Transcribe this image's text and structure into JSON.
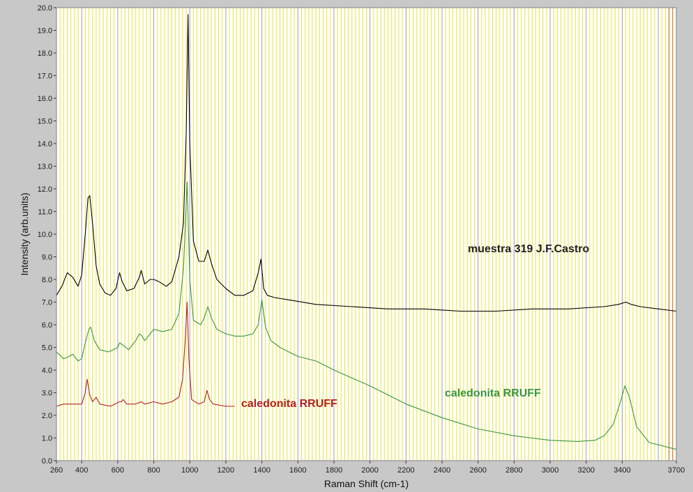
{
  "chart_data": {
    "type": "line",
    "title": "",
    "xlabel": "Raman Shift (cm-1)",
    "ylabel": "Intensity (arb.units)",
    "xlim": [
      260,
      3700
    ],
    "ylim": [
      0,
      20
    ],
    "x_ticks": [
      260,
      400,
      600,
      800,
      1000,
      1200,
      1400,
      1600,
      1800,
      2000,
      2200,
      2400,
      2600,
      2800,
      3000,
      3200,
      3400,
      3700
    ],
    "x_tick_labels": [
      "260",
      "400",
      "600",
      "800",
      "1000",
      "1200",
      "1400",
      "1600",
      "1800",
      "2000",
      "2200",
      "2400",
      "2600",
      "2800",
      "3000",
      "3200",
      "3400",
      "3700"
    ],
    "y_ticks": [
      0,
      1,
      2,
      3,
      4,
      5,
      6,
      7,
      8,
      9,
      10,
      11,
      12,
      13,
      14,
      15,
      16,
      17,
      18,
      19,
      20
    ],
    "y_tick_labels": [
      "0.0",
      "1.0",
      "2.0",
      "3.0",
      "4.0",
      "5.0",
      "6.0",
      "7.0",
      "8.0",
      "9.0",
      "10.0",
      "11.0",
      "12.0",
      "13.0",
      "14.0",
      "15.0",
      "16.0",
      "17.0",
      "18.0",
      "19.0",
      "20.0"
    ],
    "grid": true,
    "legend": "none",
    "colors": {
      "plot_background": "#ffffff",
      "frame_background": "#c8c8c8",
      "minor_grid": "#e6e63c",
      "major_grid": "#a0a0a0",
      "edge_marker": "#c86414"
    },
    "series": [
      {
        "label_text": "muestra 319 J.F.Castro",
        "color": "#000000",
        "x": [
          260,
          290,
          320,
          350,
          380,
          400,
          420,
          435,
          445,
          460,
          480,
          500,
          530,
          560,
          590,
          610,
          625,
          650,
          690,
          720,
          730,
          750,
          780,
          800,
          830,
          870,
          900,
          940,
          965,
          980,
          990,
          1000,
          1020,
          1050,
          1080,
          1100,
          1120,
          1150,
          1200,
          1250,
          1300,
          1350,
          1380,
          1395,
          1410,
          1430,
          1470,
          1550,
          1700,
          1900,
          2100,
          2300,
          2500,
          2700,
          2900,
          3100,
          3300,
          3380,
          3420,
          3450,
          3500,
          3600,
          3700
        ],
        "y": [
          7.3,
          7.7,
          8.3,
          8.1,
          7.7,
          8.2,
          10.0,
          11.6,
          11.7,
          10.5,
          8.6,
          7.8,
          7.4,
          7.3,
          7.6,
          8.3,
          7.9,
          7.5,
          7.6,
          8.1,
          8.4,
          7.8,
          8.0,
          8.0,
          7.9,
          7.7,
          7.9,
          9.0,
          10.5,
          14.5,
          19.7,
          14.0,
          9.7,
          8.8,
          8.8,
          9.3,
          8.7,
          8.0,
          7.6,
          7.3,
          7.3,
          7.5,
          8.3,
          8.9,
          7.6,
          7.3,
          7.2,
          7.1,
          6.9,
          6.8,
          6.7,
          6.7,
          6.6,
          6.6,
          6.7,
          6.7,
          6.8,
          6.9,
          7.0,
          6.9,
          6.8,
          6.7,
          6.6
        ]
      },
      {
        "label_text": "caledonita RRUFF",
        "color": "#3c963c",
        "x": [
          260,
          300,
          330,
          350,
          380,
          400,
          420,
          440,
          450,
          470,
          500,
          550,
          600,
          610,
          630,
          660,
          700,
          720,
          735,
          750,
          780,
          800,
          850,
          900,
          940,
          965,
          985,
          1000,
          1020,
          1060,
          1080,
          1100,
          1120,
          1150,
          1200,
          1250,
          1300,
          1350,
          1380,
          1400,
          1420,
          1450,
          1500,
          1600,
          1700,
          1800,
          2000,
          2200,
          2400,
          2600,
          2800,
          3000,
          3150,
          3250,
          3300,
          3350,
          3390,
          3415,
          3440,
          3480,
          3550,
          3700
        ],
        "y": [
          4.8,
          4.5,
          4.6,
          4.7,
          4.4,
          4.5,
          5.2,
          5.8,
          5.9,
          5.3,
          4.9,
          4.8,
          5.0,
          5.2,
          5.1,
          4.9,
          5.3,
          5.6,
          5.5,
          5.3,
          5.6,
          5.8,
          5.7,
          5.8,
          6.5,
          8.5,
          12.3,
          8.0,
          6.2,
          6.0,
          6.3,
          6.8,
          6.3,
          5.8,
          5.6,
          5.5,
          5.5,
          5.6,
          6.0,
          7.1,
          5.9,
          5.3,
          5.0,
          4.6,
          4.4,
          4.0,
          3.3,
          2.5,
          1.9,
          1.4,
          1.1,
          0.9,
          0.85,
          0.9,
          1.1,
          1.6,
          2.6,
          3.3,
          2.8,
          1.5,
          0.8,
          0.5
        ]
      },
      {
        "label_text": "caledonita RRUFF",
        "color": "#b42020",
        "x": [
          260,
          300,
          350,
          400,
          420,
          430,
          445,
          460,
          470,
          480,
          500,
          560,
          610,
          620,
          630,
          650,
          700,
          730,
          750,
          800,
          850,
          900,
          940,
          960,
          975,
          985,
          995,
          1010,
          1050,
          1080,
          1095,
          1110,
          1130,
          1200,
          1250
        ],
        "y": [
          2.4,
          2.5,
          2.5,
          2.5,
          3.0,
          3.6,
          2.9,
          2.6,
          2.7,
          2.8,
          2.5,
          2.4,
          2.6,
          2.6,
          2.7,
          2.5,
          2.5,
          2.6,
          2.5,
          2.6,
          2.5,
          2.6,
          2.8,
          3.6,
          5.4,
          7.0,
          4.5,
          2.7,
          2.5,
          2.6,
          3.1,
          2.7,
          2.5,
          2.4,
          2.4
        ]
      }
    ]
  }
}
